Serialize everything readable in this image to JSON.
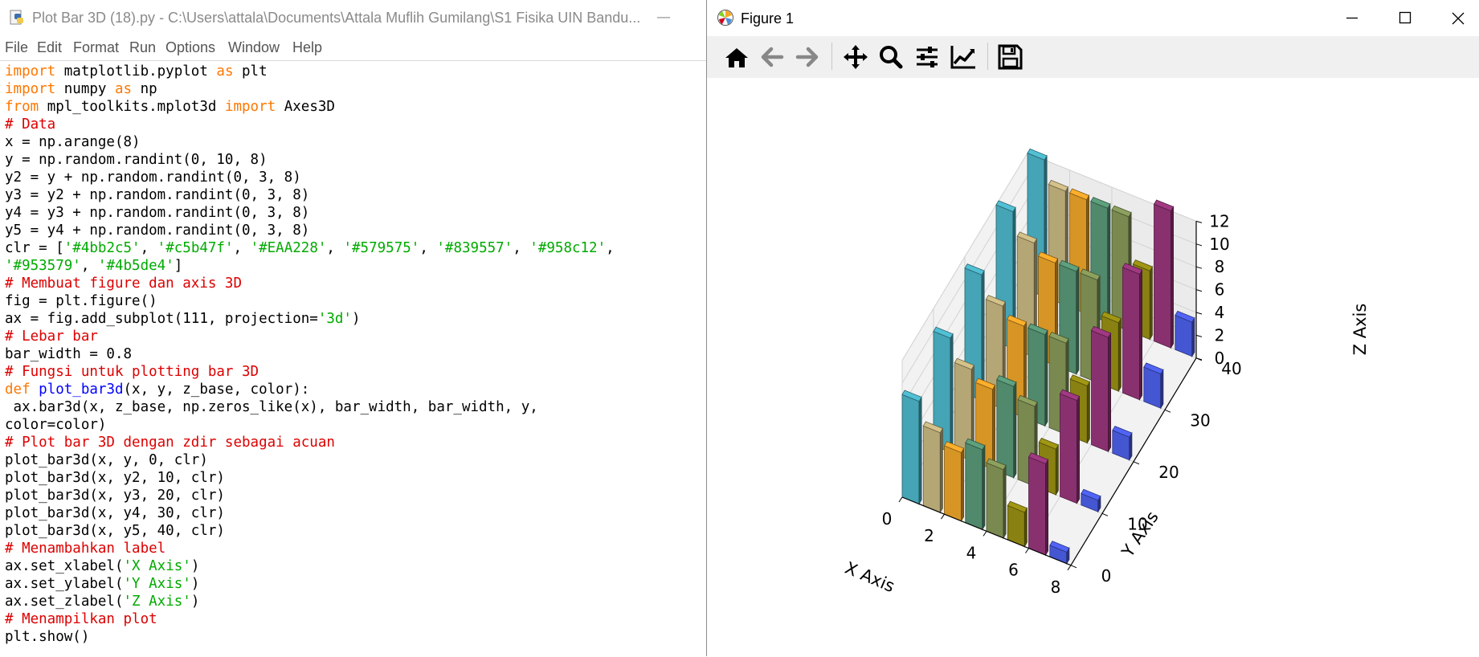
{
  "editor": {
    "title": "Plot Bar 3D (18).py - C:\\Users\\attala\\Documents\\Attala Muflih Gumilang\\S1 Fisika UIN Bandu...",
    "minimize_symbol": "—",
    "menu": [
      "File",
      "Edit",
      "Format",
      "Run",
      "Options",
      "Window",
      "Help"
    ],
    "code_lines": [
      [
        [
          "k",
          "import"
        ],
        [
          "n",
          " matplotlib.pyplot "
        ],
        [
          "k",
          "as"
        ],
        [
          "n",
          " plt"
        ]
      ],
      [
        [
          "k",
          "import"
        ],
        [
          "n",
          " numpy "
        ],
        [
          "k",
          "as"
        ],
        [
          "n",
          " np"
        ]
      ],
      [
        [
          "k",
          "from"
        ],
        [
          "n",
          " mpl_toolkits.mplot3d "
        ],
        [
          "k",
          "import"
        ],
        [
          "n",
          " Axes3D"
        ]
      ],
      [
        [
          "c",
          "# Data"
        ]
      ],
      [
        [
          "n",
          "x = np.arange(8)"
        ]
      ],
      [
        [
          "n",
          "y = np.random.randint(0, 10, 8)"
        ]
      ],
      [
        [
          "n",
          "y2 = y + np.random.randint(0, 3, 8)"
        ]
      ],
      [
        [
          "n",
          "y3 = y2 + np.random.randint(0, 3, 8)"
        ]
      ],
      [
        [
          "n",
          "y4 = y3 + np.random.randint(0, 3, 8)"
        ]
      ],
      [
        [
          "n",
          "y5 = y4 + np.random.randint(0, 3, 8)"
        ]
      ],
      [
        [
          "n",
          "clr = ["
        ],
        [
          "s",
          "'#4bb2c5'"
        ],
        [
          "n",
          ", "
        ],
        [
          "s",
          "'#c5b47f'"
        ],
        [
          "n",
          ", "
        ],
        [
          "s",
          "'#EAA228'"
        ],
        [
          "n",
          ", "
        ],
        [
          "s",
          "'#579575'"
        ],
        [
          "n",
          ", "
        ],
        [
          "s",
          "'#839557'"
        ],
        [
          "n",
          ", "
        ],
        [
          "s",
          "'#958c12'"
        ],
        [
          "n",
          ","
        ]
      ],
      [
        [
          "s",
          "'#953579'"
        ],
        [
          "n",
          ", "
        ],
        [
          "s",
          "'#4b5de4'"
        ],
        [
          "n",
          "]"
        ]
      ],
      [
        [
          "c",
          "# Membuat figure dan axis 3D"
        ]
      ],
      [
        [
          "n",
          "fig = plt.figure()"
        ]
      ],
      [
        [
          "n",
          "ax = fig.add_subplot(111, projection="
        ],
        [
          "s",
          "'3d'"
        ],
        [
          "n",
          ")"
        ]
      ],
      [
        [
          "c",
          "# Lebar bar"
        ]
      ],
      [
        [
          "n",
          "bar_width = 0.8"
        ]
      ],
      [
        [
          "c",
          "# Fungsi untuk plotting bar 3D"
        ]
      ],
      [
        [
          "k",
          "def"
        ],
        [
          "n",
          " "
        ],
        [
          "d",
          "plot_bar3d"
        ],
        [
          "n",
          "(x, y, z_base, color):"
        ]
      ],
      [
        [
          "n",
          " ax.bar3d(x, z_base, np.zeros_like(x), bar_width, bar_width, y,"
        ]
      ],
      [
        [
          "n",
          "color=color)"
        ]
      ],
      [
        [
          "c",
          "# Plot bar 3D dengan zdir sebagai acuan"
        ]
      ],
      [
        [
          "n",
          "plot_bar3d(x, y, 0, clr)"
        ]
      ],
      [
        [
          "n",
          "plot_bar3d(x, y2, 10, clr)"
        ]
      ],
      [
        [
          "n",
          "plot_bar3d(x, y3, 20, clr)"
        ]
      ],
      [
        [
          "n",
          "plot_bar3d(x, y4, 30, clr)"
        ]
      ],
      [
        [
          "n",
          "plot_bar3d(x, y5, 40, clr)"
        ]
      ],
      [
        [
          "c",
          "# Menambahkan label"
        ]
      ],
      [
        [
          "n",
          "ax.set_xlabel("
        ],
        [
          "s",
          "'X Axis'"
        ],
        [
          "n",
          ")"
        ]
      ],
      [
        [
          "n",
          "ax.set_ylabel("
        ],
        [
          "s",
          "'Y Axis'"
        ],
        [
          "n",
          ")"
        ]
      ],
      [
        [
          "n",
          "ax.set_zlabel("
        ],
        [
          "s",
          "'Z Axis'"
        ],
        [
          "n",
          ")"
        ]
      ],
      [
        [
          "c",
          "# Menampilkan plot"
        ]
      ],
      [
        [
          "n",
          "plt.show()"
        ]
      ]
    ],
    "syntax_colors": {
      "keyword": "#ff7700",
      "comment": "#dd0000",
      "string": "#00aa00",
      "defname": "#0000ff"
    }
  },
  "figure": {
    "title": "Figure 1",
    "toolbar": [
      "home-icon",
      "back-arrow-icon",
      "forward-arrow-icon",
      "pan-icon",
      "zoom-icon",
      "configure-subplots-icon",
      "edit-axes-icon",
      "save-icon"
    ]
  },
  "chart_data": {
    "type": "bar3d",
    "xlabel": "X Axis",
    "ylabel": "Y Axis",
    "zlabel": "Z Axis",
    "x_ticks": [
      0,
      2,
      4,
      6,
      8
    ],
    "y_ticks": [
      0,
      10,
      20,
      30,
      40
    ],
    "z_ticks": [
      0,
      2,
      4,
      6,
      8,
      10,
      12
    ],
    "xlim": [
      0,
      8
    ],
    "ylim": [
      0,
      40
    ],
    "zlim": [
      0,
      12
    ],
    "colors": [
      "#4bb2c5",
      "#c5b47f",
      "#EAA228",
      "#579575",
      "#839557",
      "#958c12",
      "#953579",
      "#4b5de4"
    ],
    "series": [
      {
        "y_offset": 0,
        "heights": [
          9,
          7,
          6,
          7,
          6,
          3,
          8,
          1
        ]
      },
      {
        "y_offset": 10,
        "heights": [
          10,
          8,
          7,
          8,
          7,
          4,
          9,
          1
        ]
      },
      {
        "y_offset": 20,
        "heights": [
          11,
          9,
          8,
          8,
          8,
          5,
          10,
          2
        ]
      },
      {
        "y_offset": 30,
        "heights": [
          12,
          10,
          9,
          9,
          9,
          6,
          11,
          3
        ]
      },
      {
        "y_offset": 40,
        "heights": [
          12,
          10,
          10,
          10,
          10,
          6,
          12,
          3
        ]
      }
    ]
  }
}
